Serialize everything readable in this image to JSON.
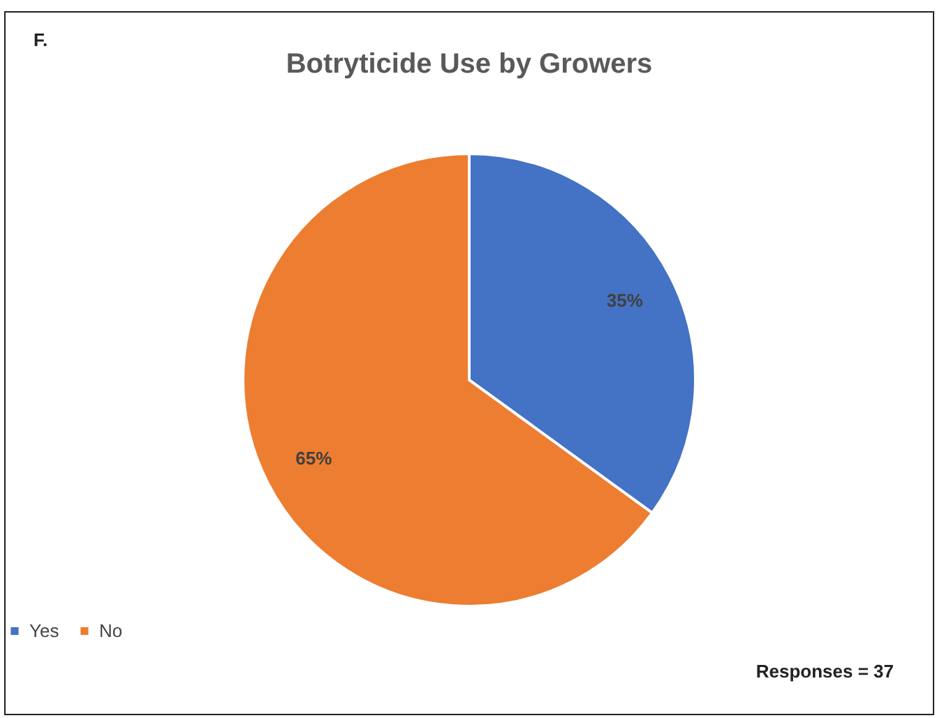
{
  "chart_data": {
    "type": "pie",
    "title": "Botryticide Use by Growers",
    "categories": [
      "Yes",
      "No"
    ],
    "values": [
      35,
      65
    ],
    "colors": [
      "#4472c4",
      "#ed7d31"
    ],
    "value_labels": [
      "35%",
      "65%"
    ],
    "legend": "bottom",
    "annotations": [
      "F.",
      "Responses = 37"
    ]
  }
}
